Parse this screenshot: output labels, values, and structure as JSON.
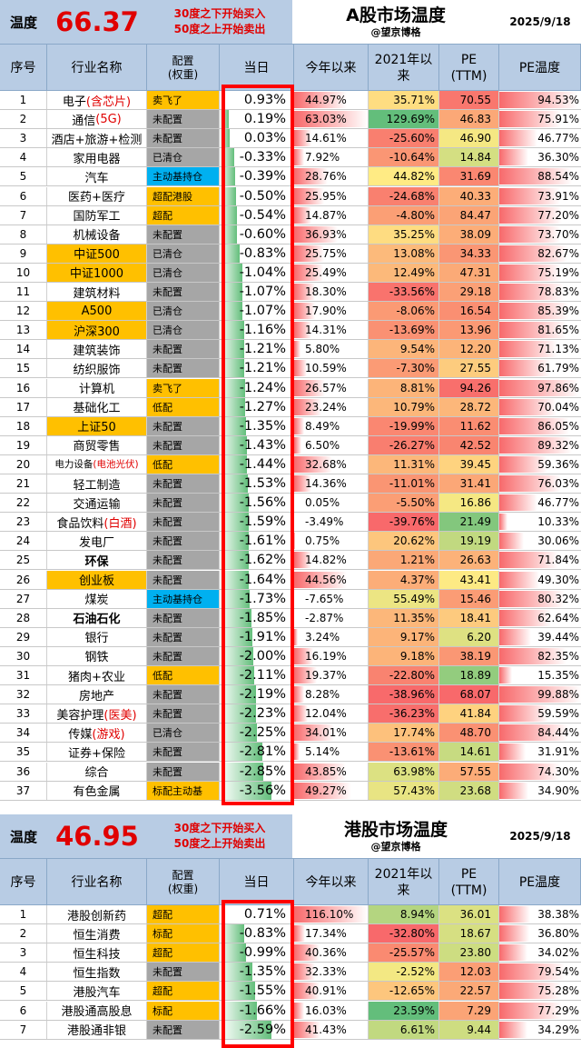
{
  "a_share": {
    "temp_label": "温度",
    "temp_value": "66.37",
    "note_line1": "30度之下开始买入",
    "note_line2": "50度之上开始卖出",
    "title": "A股市场温度",
    "author": "@望京博格",
    "date": "2025/9/18",
    "columns": [
      "序号",
      "行业名称",
      "配置\n(权重)",
      "当日",
      "今年以来",
      "2021年以\n来",
      "PE\n(TTM)",
      "PE温度"
    ],
    "rows": [
      {
        "idx": "1",
        "name": [
          {
            "t": "电子"
          },
          {
            "t": "(含芯片)",
            "red": true
          }
        ],
        "cfg": "卖飞了",
        "cfg_style": "gold",
        "today": "0.93%",
        "today_pct": 0.93,
        "ytd": "44.97%",
        "ytd_pct": 44.97,
        "since2021": "35.71%",
        "since2021_pct": 35.71,
        "pe": "70.55",
        "pe_temp": "94.53%",
        "pe_temp_pct": 94.53
      },
      {
        "idx": "2",
        "name": [
          {
            "t": "通信"
          },
          {
            "t": "(5G)",
            "red": true
          }
        ],
        "cfg": "未配置",
        "cfg_style": "gray",
        "today": "0.19%",
        "today_pct": 0.19,
        "ytd": "63.03%",
        "ytd_pct": 63.03,
        "since2021": "129.69%",
        "since2021_pct": 129.69,
        "pe": "46.83",
        "pe_temp": "75.91%",
        "pe_temp_pct": 75.91
      },
      {
        "idx": "3",
        "name": [
          {
            "t": "酒店+旅游+检测"
          }
        ],
        "cfg": "未配置",
        "cfg_style": "gray",
        "today": "0.03%",
        "today_pct": 0.03,
        "ytd": "14.61%",
        "ytd_pct": 14.61,
        "since2021": "-25.60%",
        "since2021_pct": -25.6,
        "pe": "46.90",
        "pe_temp": "46.77%",
        "pe_temp_pct": 46.77
      },
      {
        "idx": "4",
        "name": [
          {
            "t": "家用电器"
          }
        ],
        "cfg": "已清仓",
        "cfg_style": "gray",
        "today": "-0.33%",
        "today_pct": -0.33,
        "ytd": "7.92%",
        "ytd_pct": 7.92,
        "since2021": "-10.64%",
        "since2021_pct": -10.64,
        "pe": "14.84",
        "pe_temp": "36.30%",
        "pe_temp_pct": 36.3
      },
      {
        "idx": "5",
        "name": [
          {
            "t": "汽车"
          }
        ],
        "cfg": "主动基持仓",
        "cfg_style": "blue",
        "today": "-0.39%",
        "today_pct": -0.39,
        "ytd": "28.76%",
        "ytd_pct": 28.76,
        "since2021": "44.82%",
        "since2021_pct": 44.82,
        "pe": "31.69",
        "pe_temp": "88.54%",
        "pe_temp_pct": 88.54
      },
      {
        "idx": "6",
        "name": [
          {
            "t": "医药+医疗"
          }
        ],
        "cfg": "超配港股",
        "cfg_style": "gold",
        "today": "-0.50%",
        "today_pct": -0.5,
        "ytd": "25.95%",
        "ytd_pct": 25.95,
        "since2021": "-24.68%",
        "since2021_pct": -24.68,
        "pe": "40.33",
        "pe_temp": "73.91%",
        "pe_temp_pct": 73.91
      },
      {
        "idx": "7",
        "name": [
          {
            "t": "国防军工"
          }
        ],
        "cfg": "超配",
        "cfg_style": "gold",
        "today": "-0.54%",
        "today_pct": -0.54,
        "ytd": "14.87%",
        "ytd_pct": 14.87,
        "since2021": "-4.80%",
        "since2021_pct": -4.8,
        "pe": "84.47",
        "pe_temp": "77.20%",
        "pe_temp_pct": 77.2
      },
      {
        "idx": "8",
        "name": [
          {
            "t": "机械设备"
          }
        ],
        "cfg": "未配置",
        "cfg_style": "gray",
        "today": "-0.60%",
        "today_pct": -0.6,
        "ytd": "36.93%",
        "ytd_pct": 36.93,
        "since2021": "35.25%",
        "since2021_pct": 35.25,
        "pe": "38.09",
        "pe_temp": "73.70%",
        "pe_temp_pct": 73.7
      },
      {
        "idx": "9",
        "name": [
          {
            "t": "中证500"
          }
        ],
        "name_hl": true,
        "cfg": "已清仓",
        "cfg_style": "gray",
        "today": "-0.83%",
        "today_pct": -0.83,
        "ytd": "25.75%",
        "ytd_pct": 25.75,
        "since2021": "13.08%",
        "since2021_pct": 13.08,
        "pe": "34.33",
        "pe_temp": "82.67%",
        "pe_temp_pct": 82.67
      },
      {
        "idx": "10",
        "name": [
          {
            "t": "中证1000"
          }
        ],
        "name_hl": true,
        "cfg": "已清仓",
        "cfg_style": "gray",
        "today": "-1.04%",
        "today_pct": -1.04,
        "ytd": "25.49%",
        "ytd_pct": 25.49,
        "since2021": "12.49%",
        "since2021_pct": 12.49,
        "pe": "47.31",
        "pe_temp": "75.19%",
        "pe_temp_pct": 75.19
      },
      {
        "idx": "11",
        "name": [
          {
            "t": "建筑材料"
          }
        ],
        "cfg": "未配置",
        "cfg_style": "gray",
        "today": "-1.07%",
        "today_pct": -1.07,
        "ytd": "18.30%",
        "ytd_pct": 18.3,
        "since2021": "-33.56%",
        "since2021_pct": -33.56,
        "pe": "29.18",
        "pe_temp": "78.83%",
        "pe_temp_pct": 78.83
      },
      {
        "idx": "12",
        "name": [
          {
            "t": "A500"
          }
        ],
        "name_hl": true,
        "cfg": "已清仓",
        "cfg_style": "gray",
        "today": "-1.07%",
        "today_pct": -1.07,
        "ytd": "17.90%",
        "ytd_pct": 17.9,
        "since2021": "-8.06%",
        "since2021_pct": -8.06,
        "pe": "16.54",
        "pe_temp": "85.39%",
        "pe_temp_pct": 85.39
      },
      {
        "idx": "13",
        "name": [
          {
            "t": "沪深300"
          }
        ],
        "name_hl": true,
        "cfg": "已清仓",
        "cfg_style": "gray",
        "today": "-1.16%",
        "today_pct": -1.16,
        "ytd": "14.31%",
        "ytd_pct": 14.31,
        "since2021": "-13.69%",
        "since2021_pct": -13.69,
        "pe": "13.96",
        "pe_temp": "81.65%",
        "pe_temp_pct": 81.65
      },
      {
        "idx": "14",
        "name": [
          {
            "t": "建筑装饰"
          }
        ],
        "cfg": "未配置",
        "cfg_style": "gray",
        "today": "-1.21%",
        "today_pct": -1.21,
        "ytd": "5.80%",
        "ytd_pct": 5.8,
        "since2021": "9.54%",
        "since2021_pct": 9.54,
        "pe": "12.20",
        "pe_temp": "71.13%",
        "pe_temp_pct": 71.13
      },
      {
        "idx": "15",
        "name": [
          {
            "t": "纺织服饰"
          }
        ],
        "cfg": "未配置",
        "cfg_style": "gray",
        "today": "-1.21%",
        "today_pct": -1.21,
        "ytd": "10.59%",
        "ytd_pct": 10.59,
        "since2021": "-7.30%",
        "since2021_pct": -7.3,
        "pe": "27.55",
        "pe_temp": "61.79%",
        "pe_temp_pct": 61.79
      },
      {
        "idx": "16",
        "name": [
          {
            "t": "计算机"
          }
        ],
        "cfg": "卖飞了",
        "cfg_style": "gold",
        "today": "-1.24%",
        "today_pct": -1.24,
        "ytd": "26.57%",
        "ytd_pct": 26.57,
        "since2021": "8.81%",
        "since2021_pct": 8.81,
        "pe": "94.26",
        "pe_temp": "97.86%",
        "pe_temp_pct": 97.86
      },
      {
        "idx": "17",
        "name": [
          {
            "t": "基础化工"
          }
        ],
        "cfg": "低配",
        "cfg_style": "gold",
        "today": "-1.27%",
        "today_pct": -1.27,
        "ytd": "23.24%",
        "ytd_pct": 23.24,
        "since2021": "10.79%",
        "since2021_pct": 10.79,
        "pe": "28.72",
        "pe_temp": "70.04%",
        "pe_temp_pct": 70.04
      },
      {
        "idx": "18",
        "name": [
          {
            "t": "上证50"
          }
        ],
        "name_hl": true,
        "cfg": "未配置",
        "cfg_style": "gray",
        "today": "-1.35%",
        "today_pct": -1.35,
        "ytd": "8.49%",
        "ytd_pct": 8.49,
        "since2021": "-19.99%",
        "since2021_pct": -19.99,
        "pe": "11.62",
        "pe_temp": "86.05%",
        "pe_temp_pct": 86.05
      },
      {
        "idx": "19",
        "name": [
          {
            "t": "商贸零售"
          }
        ],
        "cfg": "未配置",
        "cfg_style": "gray",
        "today": "-1.43%",
        "today_pct": -1.43,
        "ytd": "6.50%",
        "ytd_pct": 6.5,
        "since2021": "-26.27%",
        "since2021_pct": -26.27,
        "pe": "42.52",
        "pe_temp": "89.32%",
        "pe_temp_pct": 89.32
      },
      {
        "idx": "20",
        "name": [
          {
            "t": "电力设备"
          },
          {
            "t": "(电池光伏)",
            "red": true
          }
        ],
        "name_small": true,
        "cfg": "低配",
        "cfg_style": "gold",
        "today": "-1.44%",
        "today_pct": -1.44,
        "ytd": "32.68%",
        "ytd_pct": 32.68,
        "since2021": "11.31%",
        "since2021_pct": 11.31,
        "pe": "39.45",
        "pe_temp": "59.36%",
        "pe_temp_pct": 59.36
      },
      {
        "idx": "21",
        "name": [
          {
            "t": "轻工制造"
          }
        ],
        "cfg": "未配置",
        "cfg_style": "gray",
        "today": "-1.53%",
        "today_pct": -1.53,
        "ytd": "14.36%",
        "ytd_pct": 14.36,
        "since2021": "-11.01%",
        "since2021_pct": -11.01,
        "pe": "31.41",
        "pe_temp": "76.03%",
        "pe_temp_pct": 76.03
      },
      {
        "idx": "22",
        "name": [
          {
            "t": "交通运输"
          }
        ],
        "cfg": "未配置",
        "cfg_style": "gray",
        "today": "-1.56%",
        "today_pct": -1.56,
        "ytd": "0.05%",
        "ytd_pct": 0.05,
        "since2021": "-5.50%",
        "since2021_pct": -5.5,
        "pe": "16.86",
        "pe_temp": "46.77%",
        "pe_temp_pct": 46.77
      },
      {
        "idx": "23",
        "name": [
          {
            "t": "食品饮料"
          },
          {
            "t": "(白酒)",
            "red": true
          }
        ],
        "cfg": "未配置",
        "cfg_style": "gray",
        "today": "-1.59%",
        "today_pct": -1.59,
        "ytd": "-3.49%",
        "ytd_pct": -3.49,
        "since2021": "-39.76%",
        "since2021_pct": -39.76,
        "pe": "21.49",
        "pe_temp": "10.33%",
        "pe_temp_pct": 10.33
      },
      {
        "idx": "24",
        "name": [
          {
            "t": "发电厂"
          }
        ],
        "cfg": "未配置",
        "cfg_style": "gray",
        "today": "-1.61%",
        "today_pct": -1.61,
        "ytd": "0.75%",
        "ytd_pct": 0.75,
        "since2021": "20.62%",
        "since2021_pct": 20.62,
        "pe": "19.19",
        "pe_temp": "30.06%",
        "pe_temp_pct": 30.06
      },
      {
        "idx": "25",
        "name": [
          {
            "t": "环保"
          }
        ],
        "name_bold": true,
        "cfg": "未配置",
        "cfg_style": "gray",
        "today": "-1.62%",
        "today_pct": -1.62,
        "ytd": "14.82%",
        "ytd_pct": 14.82,
        "since2021": "1.21%",
        "since2021_pct": 1.21,
        "pe": "26.63",
        "pe_temp": "71.84%",
        "pe_temp_pct": 71.84
      },
      {
        "idx": "26",
        "name": [
          {
            "t": "创业板"
          }
        ],
        "name_hl": true,
        "cfg": "未配置",
        "cfg_style": "gray",
        "today": "-1.64%",
        "today_pct": -1.64,
        "ytd": "44.56%",
        "ytd_pct": 44.56,
        "since2021": "4.37%",
        "since2021_pct": 4.37,
        "pe": "43.41",
        "pe_temp": "49.30%",
        "pe_temp_pct": 49.3
      },
      {
        "idx": "27",
        "name": [
          {
            "t": "煤炭"
          }
        ],
        "cfg": "主动基持仓",
        "cfg_style": "blue",
        "today": "-1.73%",
        "today_pct": -1.73,
        "ytd": "-7.65%",
        "ytd_pct": -7.65,
        "since2021": "55.49%",
        "since2021_pct": 55.49,
        "pe": "15.46",
        "pe_temp": "80.32%",
        "pe_temp_pct": 80.32
      },
      {
        "idx": "28",
        "name": [
          {
            "t": "石油石化"
          }
        ],
        "name_bold": true,
        "cfg": "未配置",
        "cfg_style": "gray",
        "today": "-1.85%",
        "today_pct": -1.85,
        "ytd": "-2.87%",
        "ytd_pct": -2.87,
        "since2021": "11.35%",
        "since2021_pct": 11.35,
        "pe": "18.41",
        "pe_temp": "62.64%",
        "pe_temp_pct": 62.64
      },
      {
        "idx": "29",
        "name": [
          {
            "t": "银行"
          }
        ],
        "cfg": "未配置",
        "cfg_style": "gray",
        "today": "-1.91%",
        "today_pct": -1.91,
        "ytd": "3.24%",
        "ytd_pct": 3.24,
        "since2021": "9.17%",
        "since2021_pct": 9.17,
        "pe": "6.20",
        "pe_temp": "39.44%",
        "pe_temp_pct": 39.44
      },
      {
        "idx": "30",
        "name": [
          {
            "t": "钢铁"
          }
        ],
        "cfg": "未配置",
        "cfg_style": "gray",
        "today": "-2.00%",
        "today_pct": -2.0,
        "ytd": "16.19%",
        "ytd_pct": 16.19,
        "since2021": "9.18%",
        "since2021_pct": 9.18,
        "pe": "38.19",
        "pe_temp": "82.35%",
        "pe_temp_pct": 82.35
      },
      {
        "idx": "31",
        "name": [
          {
            "t": "猪肉+农业"
          }
        ],
        "cfg": "低配",
        "cfg_style": "gold",
        "today": "-2.11%",
        "today_pct": -2.11,
        "ytd": "19.37%",
        "ytd_pct": 19.37,
        "since2021": "-22.80%",
        "since2021_pct": -22.8,
        "pe": "18.89",
        "pe_temp": "15.35%",
        "pe_temp_pct": 15.35
      },
      {
        "idx": "32",
        "name": [
          {
            "t": "房地产"
          }
        ],
        "cfg": "未配置",
        "cfg_style": "gray",
        "today": "-2.19%",
        "today_pct": -2.19,
        "ytd": "8.28%",
        "ytd_pct": 8.28,
        "since2021": "-38.96%",
        "since2021_pct": -38.96,
        "pe": "68.07",
        "pe_temp": "99.88%",
        "pe_temp_pct": 99.88
      },
      {
        "idx": "33",
        "name": [
          {
            "t": "美容护理"
          },
          {
            "t": "(医美)",
            "red": true
          }
        ],
        "cfg": "未配置",
        "cfg_style": "gray",
        "today": "-2.23%",
        "today_pct": -2.23,
        "ytd": "12.04%",
        "ytd_pct": 12.04,
        "since2021": "-36.23%",
        "since2021_pct": -36.23,
        "pe": "41.84",
        "pe_temp": "59.59%",
        "pe_temp_pct": 59.59
      },
      {
        "idx": "34",
        "name": [
          {
            "t": "传媒"
          },
          {
            "t": "(游戏)",
            "red": true
          }
        ],
        "cfg": "已清仓",
        "cfg_style": "gray",
        "today": "-2.25%",
        "today_pct": -2.25,
        "ytd": "34.01%",
        "ytd_pct": 34.01,
        "since2021": "17.74%",
        "since2021_pct": 17.74,
        "pe": "48.70",
        "pe_temp": "84.44%",
        "pe_temp_pct": 84.44
      },
      {
        "idx": "35",
        "name": [
          {
            "t": "证券+保险"
          }
        ],
        "cfg": "未配置",
        "cfg_style": "gray",
        "today": "-2.81%",
        "today_pct": -2.81,
        "ytd": "5.14%",
        "ytd_pct": 5.14,
        "since2021": "-13.61%",
        "since2021_pct": -13.61,
        "pe": "14.61",
        "pe_temp": "31.91%",
        "pe_temp_pct": 31.91
      },
      {
        "idx": "36",
        "name": [
          {
            "t": "综合"
          }
        ],
        "cfg": "未配置",
        "cfg_style": "gray",
        "today": "-2.85%",
        "today_pct": -2.85,
        "ytd": "43.85%",
        "ytd_pct": 43.85,
        "since2021": "63.98%",
        "since2021_pct": 63.98,
        "pe": "57.55",
        "pe_temp": "74.30%",
        "pe_temp_pct": 74.3
      },
      {
        "idx": "37",
        "name": [
          {
            "t": "有色金属"
          }
        ],
        "cfg": "标配主动基",
        "cfg_style": "gold",
        "today": "-3.56%",
        "today_pct": -3.56,
        "ytd": "49.27%",
        "ytd_pct": 49.27,
        "since2021": "57.43%",
        "since2021_pct": 57.43,
        "pe": "23.68",
        "pe_temp": "34.90%",
        "pe_temp_pct": 34.9
      }
    ]
  },
  "hk_share": {
    "temp_label": "温度",
    "temp_value": "46.95",
    "note_line1": "30度之下开始买入",
    "note_line2": "50度之上开始卖出",
    "title": "港股市场温度",
    "author": "@望京博格",
    "date": "2025/9/18",
    "columns": [
      "序号",
      "行业名称",
      "配置\n(权重)",
      "当日",
      "今年以来",
      "2021年以\n来",
      "PE\n(TTM)",
      "PE温度"
    ],
    "rows": [
      {
        "idx": "1",
        "name": [
          {
            "t": "港股创新药"
          }
        ],
        "cfg": "超配",
        "cfg_style": "gold",
        "today": "0.71%",
        "today_pct": 0.71,
        "ytd": "116.10%",
        "ytd_pct": 116.1,
        "since2021": "8.94%",
        "since2021_pct": 8.94,
        "pe": "36.01",
        "pe_temp": "38.38%",
        "pe_temp_pct": 38.38
      },
      {
        "idx": "2",
        "name": [
          {
            "t": "恒生消费"
          }
        ],
        "cfg": "标配",
        "cfg_style": "gold",
        "today": "-0.83%",
        "today_pct": -0.83,
        "ytd": "17.34%",
        "ytd_pct": 17.34,
        "since2021": "-32.80%",
        "since2021_pct": -32.8,
        "pe": "18.67",
        "pe_temp": "36.80%",
        "pe_temp_pct": 36.8
      },
      {
        "idx": "3",
        "name": [
          {
            "t": "恒生科技"
          }
        ],
        "cfg": "超配",
        "cfg_style": "gold",
        "today": "-0.99%",
        "today_pct": -0.99,
        "ytd": "40.36%",
        "ytd_pct": 40.36,
        "since2021": "-25.57%",
        "since2021_pct": -25.57,
        "pe": "23.80",
        "pe_temp": "34.02%",
        "pe_temp_pct": 34.02
      },
      {
        "idx": "4",
        "name": [
          {
            "t": "恒生指数"
          }
        ],
        "cfg": "未配置",
        "cfg_style": "gray",
        "today": "-1.35%",
        "today_pct": -1.35,
        "ytd": "32.33%",
        "ytd_pct": 32.33,
        "since2021": "-2.52%",
        "since2021_pct": -2.52,
        "pe": "12.03",
        "pe_temp": "79.54%",
        "pe_temp_pct": 79.54
      },
      {
        "idx": "5",
        "name": [
          {
            "t": "港股汽车"
          }
        ],
        "cfg": "超配",
        "cfg_style": "gold",
        "today": "-1.55%",
        "today_pct": -1.55,
        "ytd": "40.91%",
        "ytd_pct": 40.91,
        "since2021": "-12.65%",
        "since2021_pct": -12.65,
        "pe": "22.57",
        "pe_temp": "75.28%",
        "pe_temp_pct": 75.28
      },
      {
        "idx": "6",
        "name": [
          {
            "t": "港股通高股息"
          }
        ],
        "cfg": "标配",
        "cfg_style": "gold",
        "today": "-1.66%",
        "today_pct": -1.66,
        "ytd": "16.03%",
        "ytd_pct": 16.03,
        "since2021": "23.59%",
        "since2021_pct": 23.59,
        "pe": "7.29",
        "pe_temp": "77.29%",
        "pe_temp_pct": 77.29
      },
      {
        "idx": "7",
        "name": [
          {
            "t": "港股通非银"
          }
        ],
        "cfg": "未配置",
        "cfg_style": "gray",
        "today": "-2.59%",
        "today_pct": -2.59,
        "ytd": "41.43%",
        "ytd_pct": 41.43,
        "since2021": "6.61%",
        "since2021_pct": 6.61,
        "pe": "9.44",
        "pe_temp": "34.29%",
        "pe_temp_pct": 34.29
      }
    ]
  },
  "colors": {
    "header_bg": "#b8cce4",
    "temp_red": "#e00000",
    "gold": "#ffc000",
    "gray": "#a6a6a6",
    "blue": "#00b0f0",
    "green": "#63be7b",
    "yellow": "#ffeb84",
    "red": "#f8696b",
    "box_red": "#ff0000"
  }
}
